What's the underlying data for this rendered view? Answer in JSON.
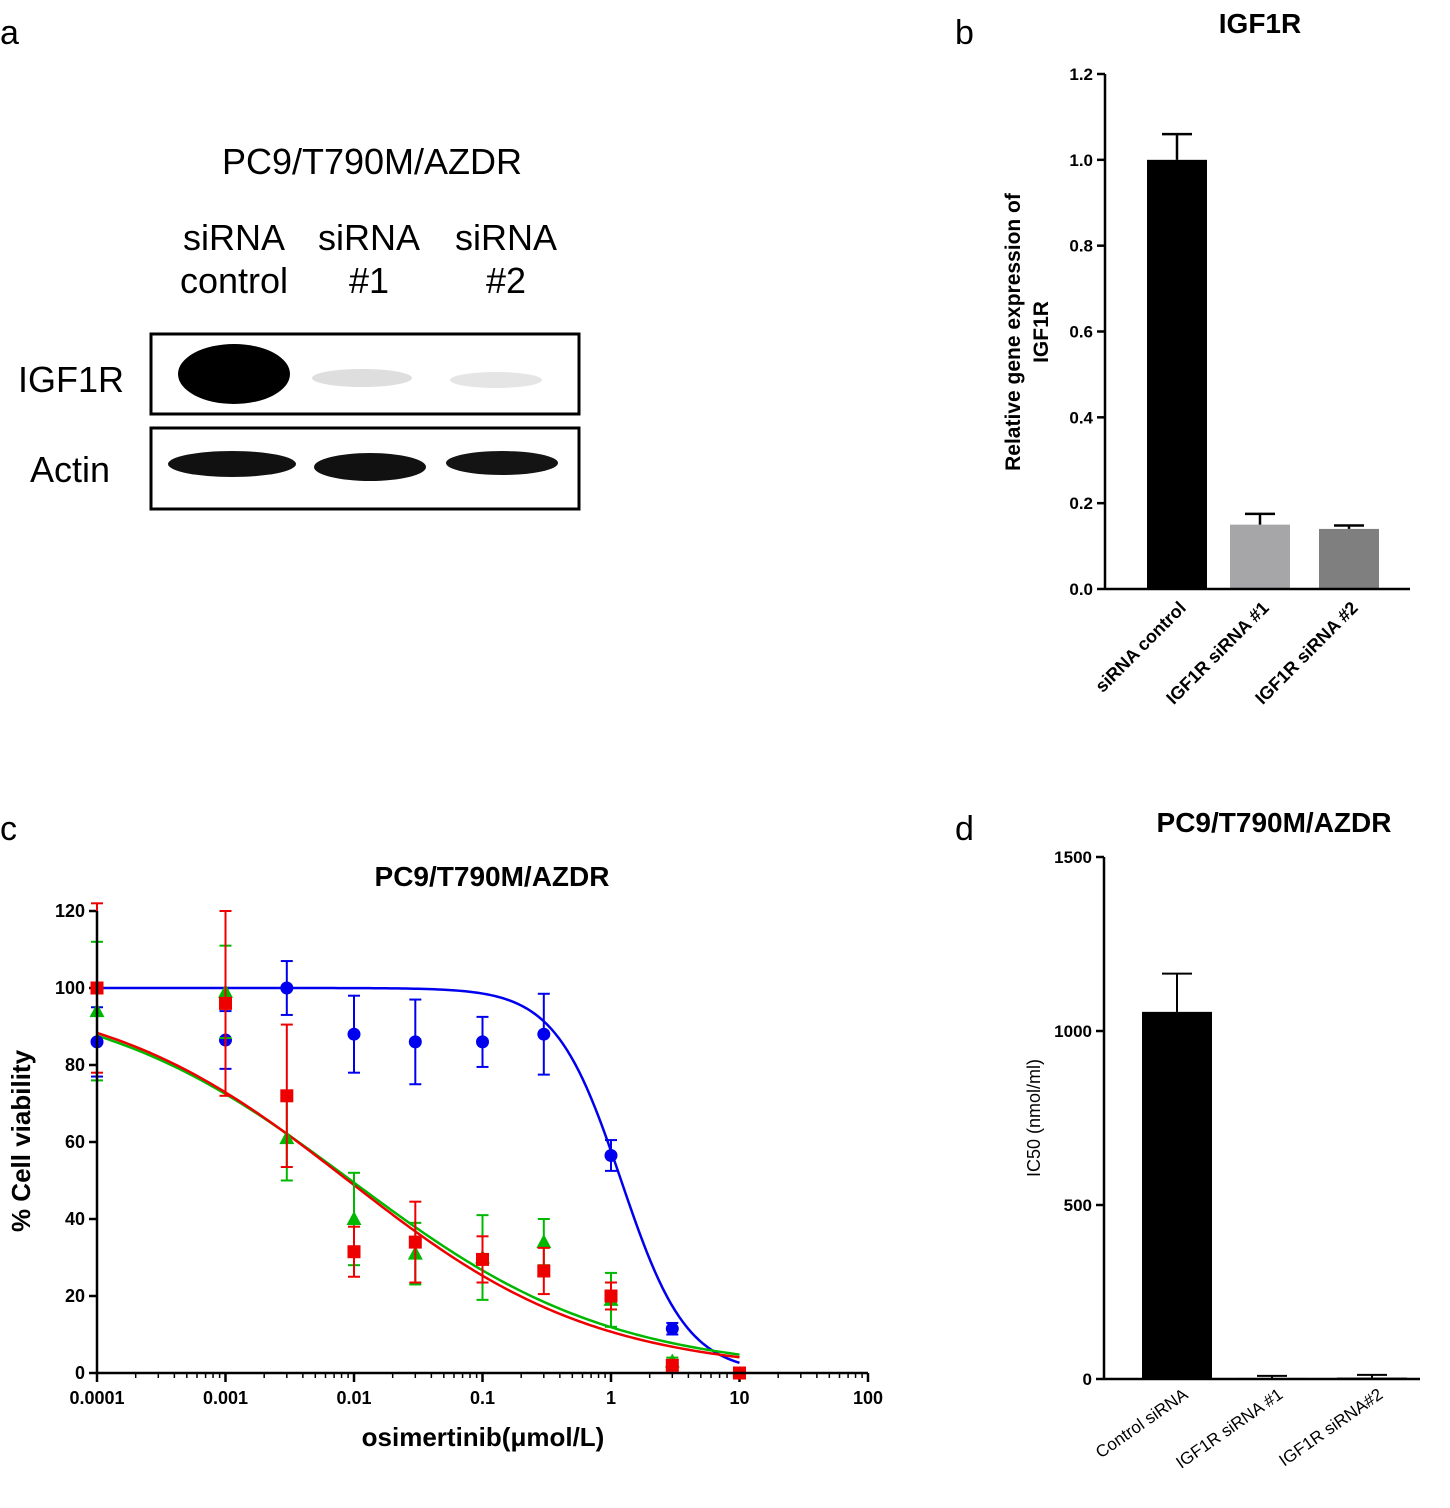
{
  "panels": {
    "a": {
      "letter": "a",
      "title": "PC9/T790M/AZDR",
      "lanes": [
        {
          "line1": "siRNA",
          "line2": "control"
        },
        {
          "line1": "siRNA",
          "line2": "#1"
        },
        {
          "line1": "siRNA",
          "line2": "#2"
        }
      ],
      "rows": [
        "IGF1R",
        "Actin"
      ],
      "band_intensity": {
        "IGF1R": [
          1.0,
          0.08,
          0.06
        ],
        "Actin": [
          1.0,
          0.95,
          0.9
        ]
      }
    },
    "b": {
      "letter": "b"
    },
    "c": {
      "letter": "c"
    },
    "d": {
      "letter": "d"
    }
  },
  "chart_data": [
    {
      "id": "b",
      "type": "bar",
      "title": "IGF1R",
      "ylabel_line1": "Relative gene expression of",
      "ylabel_line2": "IGF1R",
      "xlabel": "",
      "categories": [
        "siRNA control",
        "IGF1R siRNA #1",
        "IGF1R siRNA #2"
      ],
      "values": [
        1.0,
        0.15,
        0.14
      ],
      "errors": [
        0.06,
        0.025,
        0.008
      ],
      "bar_colors": [
        "#000000",
        "#a6a6a8",
        "#7f7f7f"
      ],
      "ylim": [
        0,
        1.2
      ],
      "yticks": [
        "0.0",
        "0.2",
        "0.4",
        "0.6",
        "0.8",
        "1.0",
        "1.2"
      ]
    },
    {
      "id": "c",
      "type": "scatter",
      "title": "PC9/T790M/AZDR",
      "xlabel": "osimertinib(μmol/L)",
      "ylabel": "% Cell viability",
      "x_scale": "log",
      "xlim": [
        0.0001,
        100
      ],
      "ylim": [
        0,
        120
      ],
      "xticks": [
        "0.0001",
        "0.001",
        "0.01",
        "0.1",
        "1",
        "10",
        "100"
      ],
      "yticks": [
        "0",
        "20",
        "40",
        "60",
        "80",
        "100",
        "120"
      ],
      "series": [
        {
          "color": "#0000ee",
          "marker": "circle",
          "x": [
            0.0001,
            0.001,
            0.003,
            0.01,
            0.03,
            0.1,
            0.3,
            1,
            3,
            10
          ],
          "y": [
            86,
            86.5,
            100,
            88,
            86,
            86,
            88,
            56.5,
            11.5,
            0
          ],
          "err": [
            9,
            7.5,
            7,
            10,
            11,
            6.5,
            10.5,
            4,
            1.5,
            1
          ],
          "fit": {
            "top": 100,
            "bottom": 0,
            "ic50": 1.2,
            "hill": 1.7
          }
        },
        {
          "color": "#00b800",
          "marker": "triangle",
          "x": [
            0.0001,
            0.001,
            0.003,
            0.01,
            0.03,
            0.1,
            0.3,
            1,
            3
          ],
          "y": [
            94,
            99,
            61,
            40,
            31,
            30,
            34,
            19,
            3
          ],
          "err": [
            18,
            12,
            11,
            12,
            8,
            11,
            6,
            7,
            1
          ],
          "fit": {
            "top": 100,
            "bottom": 0,
            "ic50": 0.0095,
            "hill": 0.43
          }
        },
        {
          "color": "#ee0000",
          "marker": "square",
          "x": [
            0.0001,
            0.001,
            0.003,
            0.01,
            0.03,
            0.1,
            0.3,
            1,
            3,
            10
          ],
          "y": [
            100,
            96,
            72,
            31.5,
            34,
            29.5,
            26.5,
            20,
            2,
            0
          ],
          "err": [
            22,
            24,
            18.5,
            6.5,
            10.5,
            6,
            6,
            3.5,
            1,
            0.5
          ],
          "fit": {
            "top": 100,
            "bottom": 0,
            "ic50": 0.009,
            "hill": 0.45
          }
        }
      ]
    },
    {
      "id": "d",
      "type": "bar",
      "title": "PC9/T790M/AZDR",
      "ylabel": "IC50 (nmol/ml)",
      "xlabel": "",
      "categories": [
        "Control siRNA",
        "IGF1R siRNA #1",
        "IGF1R siRNA#2"
      ],
      "values": [
        1055,
        3,
        4
      ],
      "errors": [
        110,
        6,
        8
      ],
      "bar_colors": [
        "#000000",
        "#000000",
        "#000000"
      ],
      "ylim": [
        0,
        1500
      ],
      "yticks": [
        "0",
        "500",
        "1000",
        "1500"
      ]
    }
  ]
}
